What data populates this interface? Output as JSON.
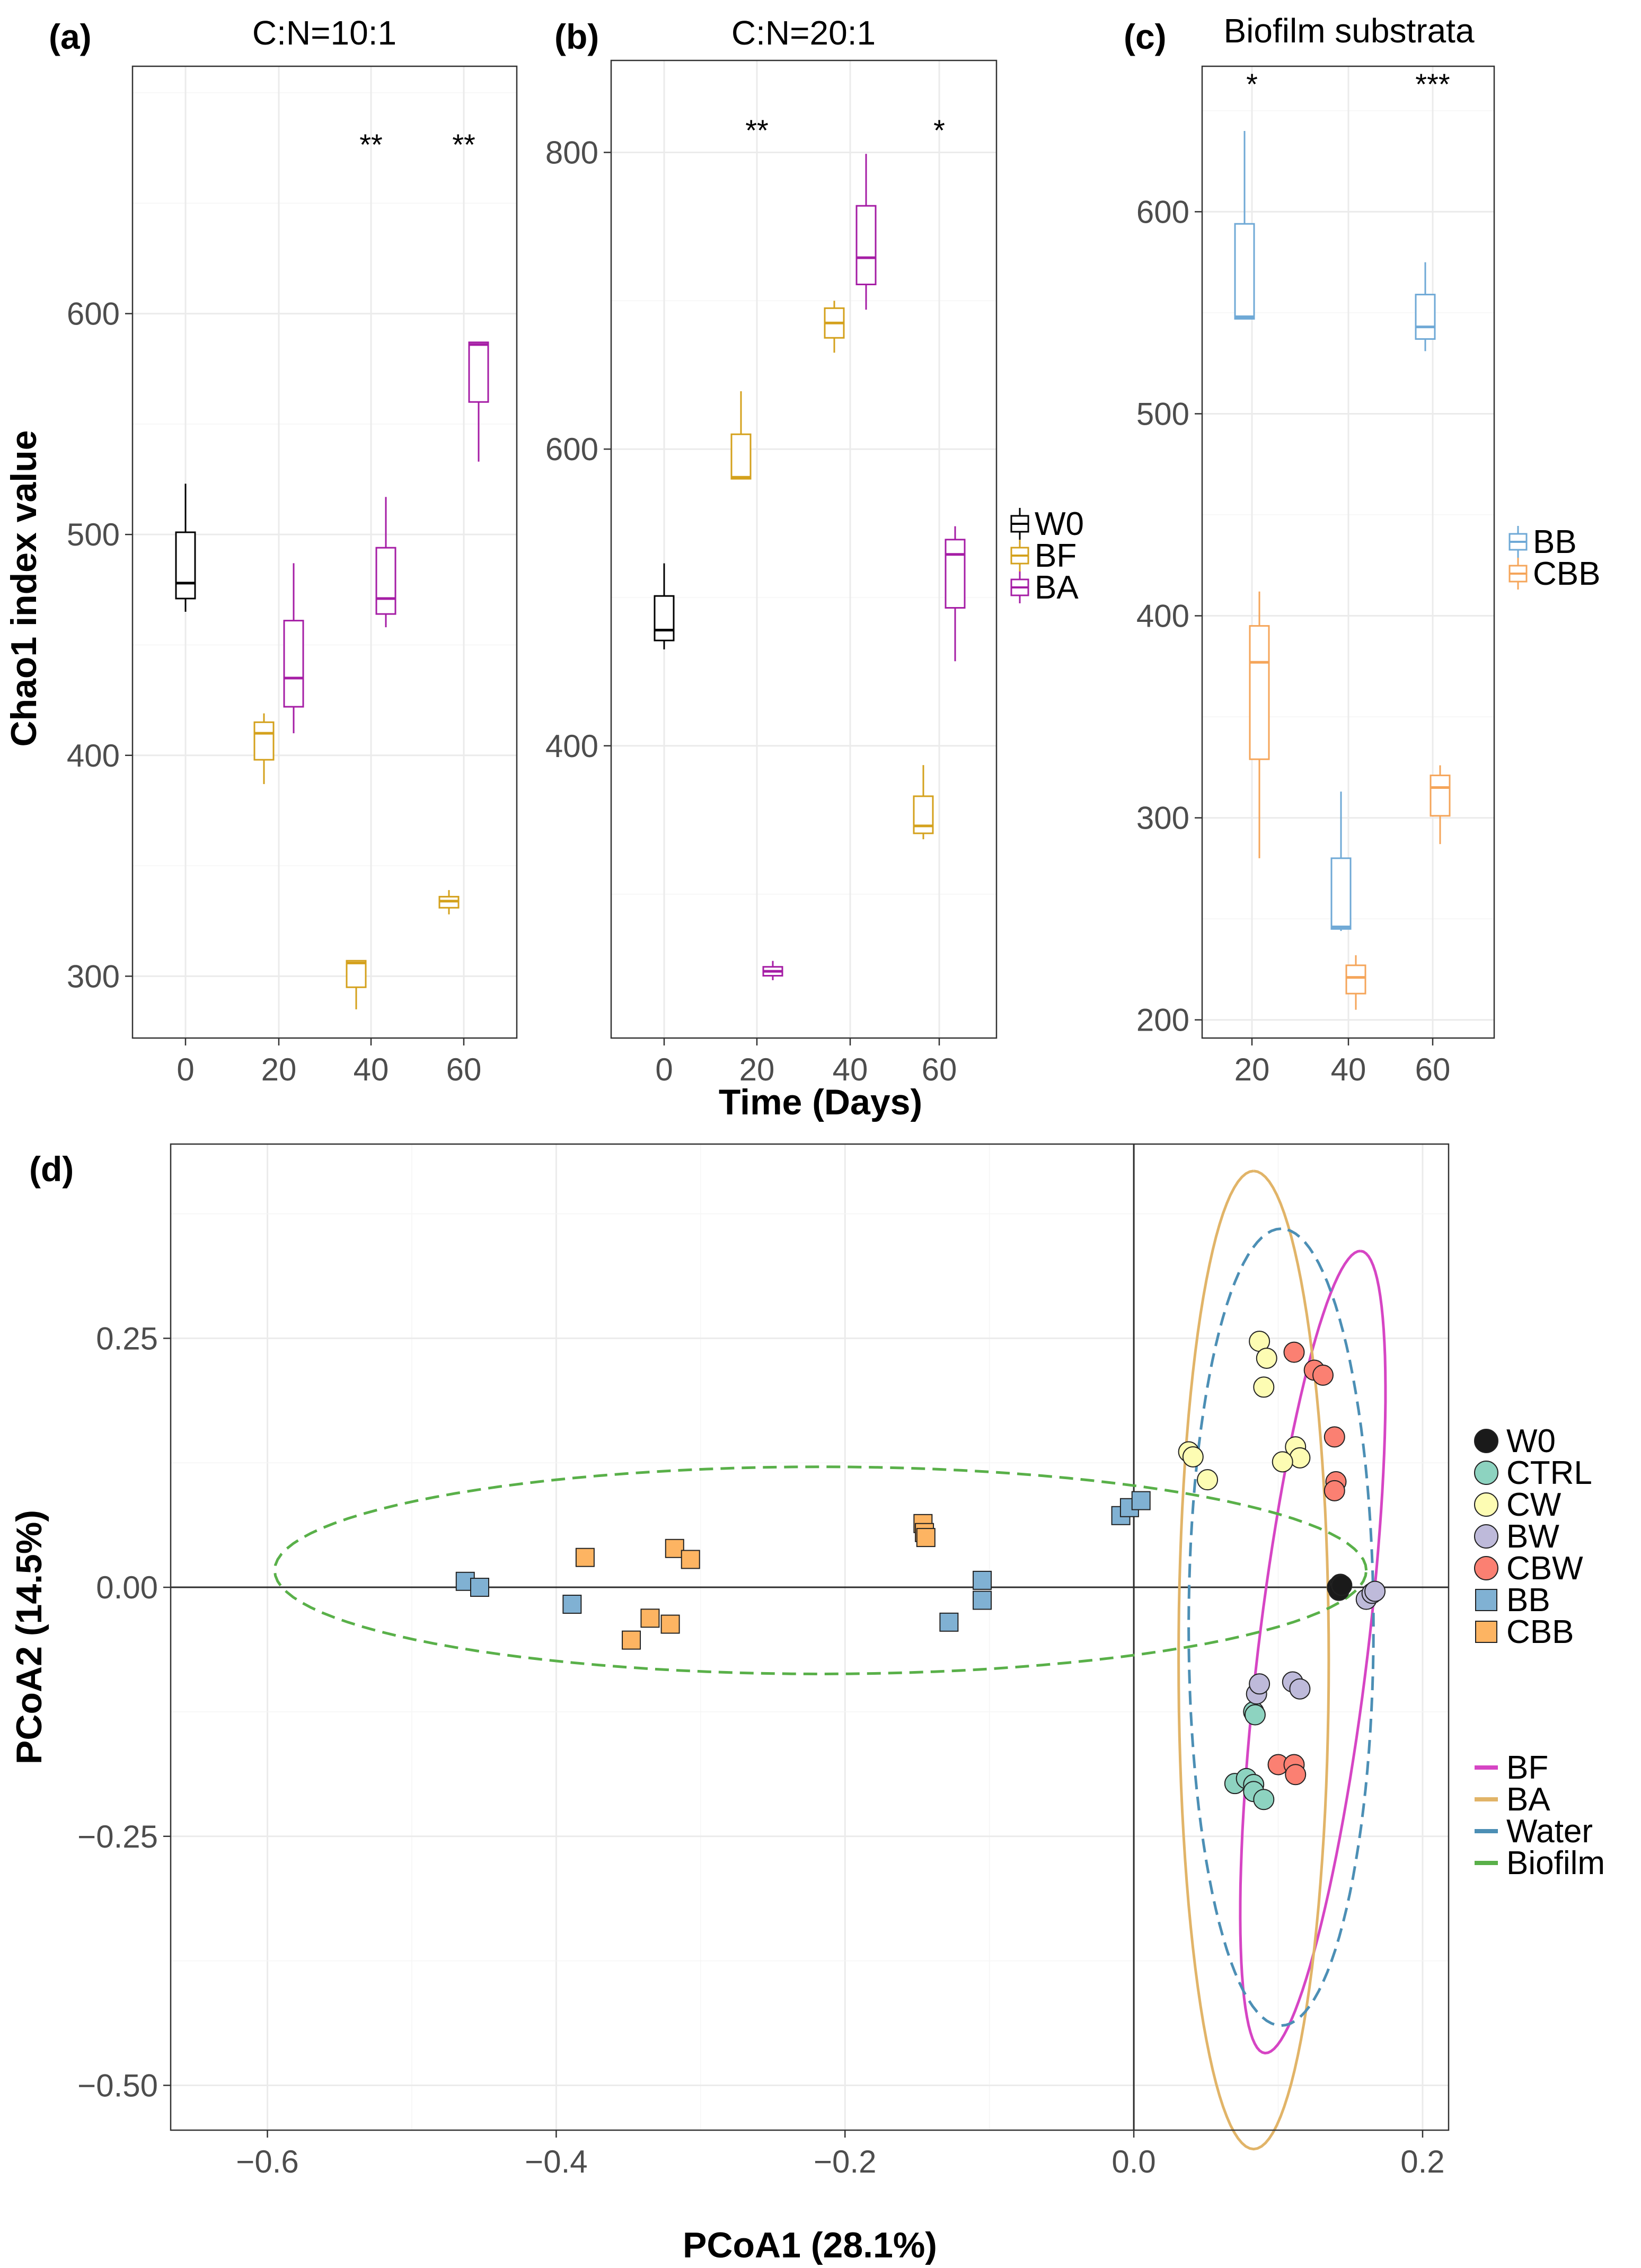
{
  "panels": {
    "a": {
      "tag": "(a)",
      "title": "C:N=10:1",
      "xticks": [
        "0",
        "20",
        "40",
        "60"
      ],
      "yticks": [
        "300",
        "400",
        "500",
        "600"
      ],
      "ylim": [
        272,
        712
      ],
      "boxes": [
        {
          "x": "0",
          "group": "W0",
          "min": 465,
          "q1": 471,
          "median": 478,
          "q3": 501,
          "max": 523
        },
        {
          "x": "20",
          "group": "BF",
          "min": 387,
          "q1": 398,
          "median": 410,
          "q3": 415,
          "max": 419
        },
        {
          "x": "20",
          "group": "BA",
          "min": 410,
          "q1": 422,
          "median": 435,
          "q3": 461,
          "max": 487
        },
        {
          "x": "40",
          "group": "BF",
          "min": 285,
          "q1": 295,
          "median": 306,
          "q3": 307,
          "max": 307
        },
        {
          "x": "40",
          "group": "BA",
          "min": 458,
          "q1": 464,
          "median": 471,
          "q3": 494,
          "max": 517
        },
        {
          "x": "60",
          "group": "BF",
          "min": 328,
          "q1": 331,
          "median": 334,
          "q3": 336,
          "max": 339
        },
        {
          "x": "60",
          "group": "BA",
          "min": 533,
          "q1": 560,
          "median": 586,
          "q3": 587,
          "max": 587
        }
      ],
      "significance": [
        {
          "x": "40",
          "label": "**"
        },
        {
          "x": "60",
          "label": "**"
        }
      ]
    },
    "b": {
      "tag": "(b)",
      "title": "C:N=20:1",
      "xticks": [
        "0",
        "20",
        "40",
        "60"
      ],
      "yticks": [
        "400",
        "600",
        "800"
      ],
      "ylim": [
        203,
        862
      ],
      "boxes": [
        {
          "x": "0",
          "group": "W0",
          "min": 465,
          "q1": 471,
          "median": 478,
          "q3": 501,
          "max": 523
        },
        {
          "x": "20",
          "group": "BF",
          "min": 580,
          "q1": 580,
          "median": 581,
          "q3": 610,
          "max": 639
        },
        {
          "x": "20",
          "group": "BA",
          "min": 242,
          "q1": 245,
          "median": 248,
          "q3": 251,
          "max": 255
        },
        {
          "x": "40",
          "group": "BF",
          "min": 665,
          "q1": 675,
          "median": 685,
          "q3": 695,
          "max": 700
        },
        {
          "x": "40",
          "group": "BA",
          "min": 694,
          "q1": 711,
          "median": 729,
          "q3": 764,
          "max": 799
        },
        {
          "x": "60",
          "group": "BF",
          "min": 337,
          "q1": 341,
          "median": 346,
          "q3": 366,
          "max": 387
        },
        {
          "x": "60",
          "group": "BA",
          "min": 457,
          "q1": 493,
          "median": 529,
          "q3": 539,
          "max": 548
        }
      ],
      "significance": [
        {
          "x": "20",
          "label": "**"
        },
        {
          "x": "60",
          "label": "*"
        }
      ]
    },
    "c": {
      "tag": "(c)",
      "title": "Biofilm substrata",
      "xticks": [
        "20",
        "40",
        "60"
      ],
      "yticks": [
        "200",
        "300",
        "400",
        "500",
        "600"
      ],
      "ylim": [
        191,
        672
      ],
      "boxes": [
        {
          "x": "20",
          "group": "BB",
          "min": 547,
          "q1": 547,
          "median": 548,
          "q3": 594,
          "max": 640
        },
        {
          "x": "20",
          "group": "CBB",
          "min": 280,
          "q1": 329,
          "median": 377,
          "q3": 395,
          "max": 412
        },
        {
          "x": "40",
          "group": "BB",
          "min": 244,
          "q1": 245,
          "median": 246,
          "q3": 280,
          "max": 313
        },
        {
          "x": "40",
          "group": "CBB",
          "min": 205,
          "q1": 213,
          "median": 221,
          "q3": 227,
          "max": 232
        },
        {
          "x": "60",
          "group": "BB",
          "min": 531,
          "q1": 537,
          "median": 543,
          "q3": 559,
          "max": 575
        },
        {
          "x": "60",
          "group": "CBB",
          "min": 287,
          "q1": 301,
          "median": 315,
          "q3": 321,
          "max": 326
        }
      ],
      "significance": [
        {
          "x": "20",
          "label": "*"
        },
        {
          "x": "60",
          "label": "***"
        }
      ]
    },
    "d": {
      "tag": "(d)",
      "xticks": [
        "−0.6",
        "−0.4",
        "−0.2",
        "0.0",
        "0.2"
      ],
      "yticks": [
        "−0.50",
        "−0.25",
        "0.00",
        "0.25"
      ],
      "xlabel": "PCoA1 (28.1%)",
      "ylabel": "PCoA2 (14.5%)"
    }
  },
  "legends": {
    "ab": [
      {
        "label": "W0",
        "color": "#000000"
      },
      {
        "label": "BF",
        "color": "#d4a11c"
      },
      {
        "label": "BA",
        "color": "#a51da5"
      }
    ],
    "c": [
      {
        "label": "BB",
        "color": "#6fa9d6"
      },
      {
        "label": "CBB",
        "color": "#f5a55a"
      }
    ],
    "d_points": [
      {
        "label": "W0",
        "fill": "#1a1a1a",
        "shape": "circle"
      },
      {
        "label": "CTRL",
        "fill": "#8dd3c0",
        "shape": "circle"
      },
      {
        "label": "CW",
        "fill": "#fdfcb3",
        "shape": "circle"
      },
      {
        "label": "BW",
        "fill": "#bebada",
        "shape": "circle"
      },
      {
        "label": "CBW",
        "fill": "#fb8072",
        "shape": "circle"
      },
      {
        "label": "BB",
        "fill": "#80b1d3",
        "shape": "square"
      },
      {
        "label": "CBB",
        "fill": "#fdb462",
        "shape": "square"
      }
    ],
    "d_ellipses": [
      {
        "label": "BF",
        "color": "#d645c4"
      },
      {
        "label": "BA",
        "color": "#e1b468"
      },
      {
        "label": "Water",
        "color": "#4c8fb5"
      },
      {
        "label": "Biofilm",
        "color": "#59b049"
      }
    ]
  },
  "axis_titles": {
    "y_abc": "Chao1 index value",
    "x_abc": "Time (Days)"
  },
  "chart_data": [
    {
      "type": "boxplot",
      "title": "C:N=10:1",
      "xlabel": "Time (Days)",
      "ylabel": "Chao1 index value",
      "categories": [
        "0",
        "20",
        "40",
        "60"
      ],
      "series": [
        {
          "name": "W0",
          "values": {
            "0": [
              465,
              471,
              478,
              501,
              523
            ]
          }
        },
        {
          "name": "BF",
          "values": {
            "20": [
              387,
              398,
              410,
              415,
              419
            ],
            "40": [
              285,
              295,
              306,
              307,
              307
            ],
            "60": [
              328,
              331,
              334,
              336,
              339
            ]
          }
        },
        {
          "name": "BA",
          "values": {
            "20": [
              410,
              422,
              435,
              461,
              487
            ],
            "40": [
              458,
              464,
              471,
              494,
              517
            ],
            "60": [
              533,
              560,
              586,
              587,
              587
            ]
          }
        }
      ],
      "ylim": [
        272,
        712
      ]
    },
    {
      "type": "boxplot",
      "title": "C:N=20:1",
      "xlabel": "Time (Days)",
      "ylabel": "Chao1 index value",
      "categories": [
        "0",
        "20",
        "40",
        "60"
      ],
      "series": [
        {
          "name": "W0",
          "values": {
            "0": [
              465,
              471,
              478,
              501,
              523
            ]
          }
        },
        {
          "name": "BF",
          "values": {
            "20": [
              580,
              580,
              581,
              610,
              639
            ],
            "40": [
              665,
              675,
              685,
              695,
              700
            ],
            "60": [
              337,
              341,
              346,
              366,
              387
            ]
          }
        },
        {
          "name": "BA",
          "values": {
            "20": [
              242,
              245,
              248,
              251,
              255
            ],
            "40": [
              694,
              711,
              729,
              764,
              799
            ],
            "60": [
              457,
              493,
              529,
              539,
              548
            ]
          }
        }
      ],
      "ylim": [
        203,
        862
      ]
    },
    {
      "type": "boxplot",
      "title": "Biofilm substrata",
      "xlabel": "Time (Days)",
      "ylabel": "Chao1 index value",
      "categories": [
        "20",
        "40",
        "60"
      ],
      "series": [
        {
          "name": "BB",
          "values": {
            "20": [
              547,
              547,
              548,
              594,
              640
            ],
            "40": [
              244,
              245,
              246,
              280,
              313
            ],
            "60": [
              531,
              537,
              543,
              559,
              575
            ]
          }
        },
        {
          "name": "CBB",
          "values": {
            "20": [
              280,
              329,
              377,
              395,
              412
            ],
            "40": [
              205,
              213,
              221,
              227,
              232
            ],
            "60": [
              287,
              301,
              315,
              321,
              326
            ]
          }
        }
      ],
      "ylim": [
        191,
        672
      ]
    },
    {
      "type": "scatter",
      "title": "",
      "xlabel": "PCoA1 (28.1%)",
      "ylabel": "PCoA2 (14.5%)",
      "xlim": [
        -0.667,
        0.218
      ],
      "ylim": [
        -0.545,
        0.445
      ],
      "series": [
        {
          "name": "W0",
          "points": [
            [
              0.141,
              0.0
            ],
            [
              0.143,
              0.003
            ],
            [
              0.142,
              -0.003
            ],
            [
              0.144,
              0.002
            ]
          ]
        },
        {
          "name": "CTRL",
          "points": [
            [
              0.083,
              -0.125
            ],
            [
              0.07,
              -0.197
            ],
            [
              0.078,
              -0.192
            ],
            [
              0.083,
              -0.198
            ],
            [
              0.083,
              -0.205
            ],
            [
              0.09,
              -0.213
            ],
            [
              0.084,
              -0.128
            ]
          ]
        },
        {
          "name": "CW",
          "points": [
            [
              0.087,
              0.247
            ],
            [
              0.092,
              0.23
            ],
            [
              0.09,
              0.201
            ],
            [
              0.038,
              0.136
            ],
            [
              0.041,
              0.131
            ],
            [
              0.051,
              0.108
            ],
            [
              0.112,
              0.141
            ],
            [
              0.115,
              0.13
            ],
            [
              0.103,
              0.126
            ]
          ]
        },
        {
          "name": "BW",
          "points": [
            [
              0.085,
              -0.107
            ],
            [
              0.087,
              -0.097
            ],
            [
              0.11,
              -0.095
            ],
            [
              0.115,
              -0.102
            ],
            [
              0.161,
              -0.012
            ],
            [
              0.165,
              -0.006
            ],
            [
              0.167,
              -0.004
            ]
          ]
        },
        {
          "name": "CBW",
          "points": [
            [
              0.111,
              0.236
            ],
            [
              0.125,
              0.218
            ],
            [
              0.131,
              0.213
            ],
            [
              0.139,
              0.151
            ],
            [
              0.14,
              0.106
            ],
            [
              0.139,
              0.097
            ],
            [
              0.1,
              -0.178
            ],
            [
              0.111,
              -0.178
            ],
            [
              0.112,
              -0.188
            ]
          ]
        },
        {
          "name": "BB",
          "points": [
            [
              -0.463,
              0.006
            ],
            [
              -0.453,
              0.0
            ],
            [
              -0.389,
              -0.017
            ],
            [
              -0.128,
              -0.035
            ],
            [
              -0.105,
              0.007
            ],
            [
              -0.105,
              -0.013
            ],
            [
              -0.009,
              0.072
            ],
            [
              -0.003,
              0.08
            ],
            [
              0.005,
              0.087
            ]
          ]
        },
        {
          "name": "CBB",
          "points": [
            [
              -0.38,
              0.03
            ],
            [
              -0.318,
              0.039
            ],
            [
              -0.307,
              0.028
            ],
            [
              -0.335,
              -0.031
            ],
            [
              -0.321,
              -0.037
            ],
            [
              -0.348,
              -0.053
            ],
            [
              -0.146,
              0.064
            ],
            [
              -0.145,
              0.055
            ],
            [
              -0.144,
              0.05
            ]
          ]
        }
      ],
      "ellipses": [
        {
          "name": "BF",
          "center": [
            0.124,
            -0.065
          ],
          "semi_major": 0.404,
          "semi_minor": 0.038,
          "angle_deg": 85.3,
          "style": "solid"
        },
        {
          "name": "BA",
          "center": [
            0.083,
            -0.073
          ],
          "semi_major": 0.491,
          "semi_minor": 0.052,
          "angle_deg": 90,
          "style": "solid"
        },
        {
          "name": "Water",
          "center": [
            0.102,
            -0.04
          ],
          "semi_major": 0.4,
          "semi_minor": 0.064,
          "angle_deg": 90,
          "style": "dashed"
        },
        {
          "name": "Biofilm",
          "center": [
            -0.217,
            0.017
          ],
          "semi_major": 0.378,
          "semi_minor": 0.104,
          "angle_deg": 0,
          "style": "dashed"
        }
      ]
    }
  ]
}
